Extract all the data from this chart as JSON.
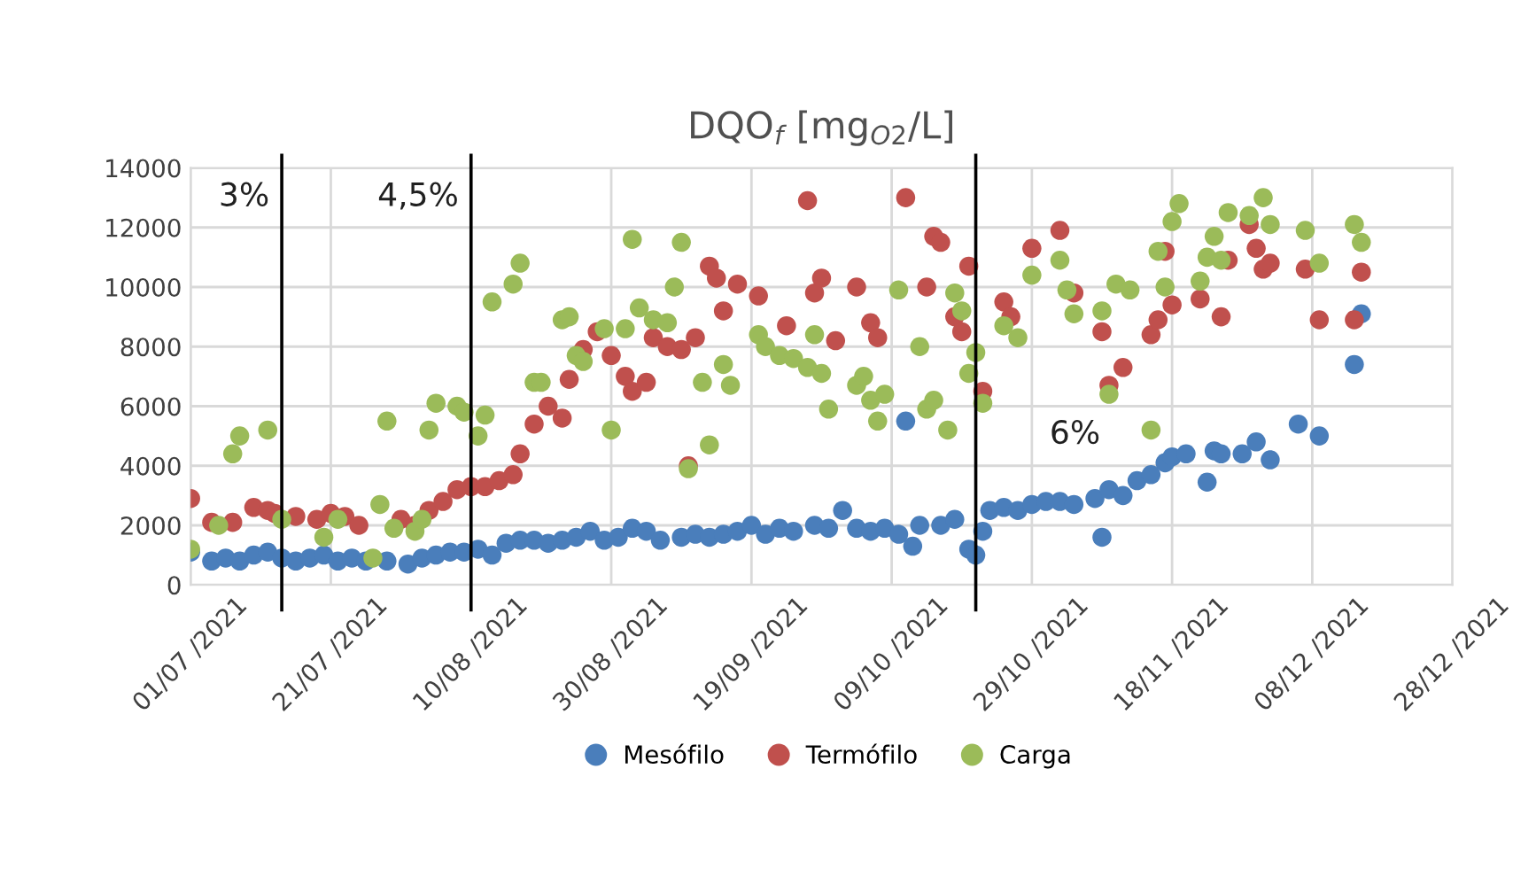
{
  "chart_data": {
    "type": "scatter",
    "title": "DQO$_{f}$ [mg$_{O2}$/L]",
    "xlim": [
      "2021-07-01",
      "2021-12-28"
    ],
    "xticks": [
      {
        "value": "2021-07-01",
        "label": "01/07 /2021"
      },
      {
        "value": "2021-07-21",
        "label": "21/07 /2021"
      },
      {
        "value": "2021-08-10",
        "label": "10/08 /2021"
      },
      {
        "value": "2021-08-30",
        "label": "30/08 /2021"
      },
      {
        "value": "2021-09-19",
        "label": "19/09 /2021"
      },
      {
        "value": "2021-10-09",
        "label": "09/10 /2021"
      },
      {
        "value": "2021-10-29",
        "label": "29/10 /2021"
      },
      {
        "value": "2021-11-18",
        "label": "18/11 /2021"
      },
      {
        "value": "2021-12-08",
        "label": "08/12 /2021"
      },
      {
        "value": "2021-12-28",
        "label": "28/12 /2021"
      }
    ],
    "ylim": [
      0,
      14000
    ],
    "yticks": [
      0,
      2000,
      4000,
      6000,
      8000,
      10000,
      12000,
      14000
    ],
    "grid": true,
    "legend": "bottom",
    "marker": "circle",
    "ref_lines": [
      {
        "axis": "x",
        "value": "2021-07-14",
        "label": "3%",
        "color": "#000000"
      },
      {
        "axis": "x",
        "value": "2021-08-10",
        "label": "4,5%",
        "color": "#000000"
      },
      {
        "axis": "x",
        "value": "2021-10-21",
        "label": "6%",
        "color": "#000000"
      }
    ],
    "series": [
      {
        "name": "Mesófilo",
        "color": "#4a7ebb",
        "x": [
          "2021-07-01",
          "2021-07-04",
          "2021-07-06",
          "2021-07-08",
          "2021-07-10",
          "2021-07-12",
          "2021-07-14",
          "2021-07-16",
          "2021-07-18",
          "2021-07-20",
          "2021-07-22",
          "2021-07-24",
          "2021-07-26",
          "2021-07-29",
          "2021-08-01",
          "2021-08-03",
          "2021-08-05",
          "2021-08-07",
          "2021-08-09",
          "2021-08-11",
          "2021-08-13",
          "2021-08-15",
          "2021-08-17",
          "2021-08-19",
          "2021-08-21",
          "2021-08-23",
          "2021-08-25",
          "2021-08-27",
          "2021-08-29",
          "2021-08-31",
          "2021-09-02",
          "2021-09-04",
          "2021-09-06",
          "2021-09-09",
          "2021-09-11",
          "2021-09-13",
          "2021-09-15",
          "2021-09-17",
          "2021-09-19",
          "2021-09-21",
          "2021-09-23",
          "2021-09-25",
          "2021-09-28",
          "2021-09-30",
          "2021-10-02",
          "2021-10-04",
          "2021-10-06",
          "2021-10-08",
          "2021-10-10",
          "2021-10-11",
          "2021-10-12",
          "2021-10-13",
          "2021-10-16",
          "2021-10-18",
          "2021-10-20",
          "2021-10-21",
          "2021-10-22",
          "2021-10-23",
          "2021-10-25",
          "2021-10-27",
          "2021-10-29",
          "2021-10-31",
          "2021-11-02",
          "2021-11-04",
          "2021-11-07",
          "2021-11-08",
          "2021-11-09",
          "2021-11-11",
          "2021-11-13",
          "2021-11-15",
          "2021-11-17",
          "2021-11-18",
          "2021-11-20",
          "2021-11-23",
          "2021-11-24",
          "2021-11-25",
          "2021-11-28",
          "2021-11-30",
          "2021-12-02",
          "2021-12-06",
          "2021-12-09",
          "2021-12-14",
          "2021-12-15"
        ],
        "values": [
          1100,
          800,
          900,
          800,
          1000,
          1100,
          900,
          800,
          900,
          1000,
          800,
          900,
          800,
          800,
          700,
          900,
          1000,
          1100,
          1100,
          1200,
          1000,
          1400,
          1500,
          1500,
          1400,
          1500,
          1600,
          1800,
          1500,
          1600,
          1900,
          1800,
          1500,
          1600,
          1700,
          1600,
          1700,
          1800,
          2000,
          1700,
          1900,
          1800,
          2000,
          1900,
          2500,
          1900,
          1800,
          1900,
          1700,
          5500,
          1300,
          2000,
          2000,
          2200,
          1200,
          1000,
          1800,
          2500,
          2600,
          2500,
          2700,
          2800,
          2800,
          2700,
          2900,
          1600,
          3200,
          3000,
          3500,
          3700,
          4100,
          4300,
          4400,
          3450,
          4500,
          4400,
          4400,
          4800,
          4200,
          5400,
          5000,
          7400,
          9100
        ]
      },
      {
        "name": "Termófilo",
        "color": "#c0504d",
        "x": [
          "2021-07-01",
          "2021-07-04",
          "2021-07-07",
          "2021-07-10",
          "2021-07-12",
          "2021-07-13",
          "2021-07-16",
          "2021-07-19",
          "2021-07-21",
          "2021-07-23",
          "2021-07-25",
          "2021-07-31",
          "2021-08-02",
          "2021-08-04",
          "2021-08-06",
          "2021-08-08",
          "2021-08-10",
          "2021-08-12",
          "2021-08-14",
          "2021-08-16",
          "2021-08-17",
          "2021-08-19",
          "2021-08-21",
          "2021-08-23",
          "2021-08-24",
          "2021-08-26",
          "2021-08-28",
          "2021-08-30",
          "2021-09-01",
          "2021-09-02",
          "2021-09-04",
          "2021-09-05",
          "2021-09-07",
          "2021-09-09",
          "2021-09-10",
          "2021-09-11",
          "2021-09-13",
          "2021-09-14",
          "2021-09-15",
          "2021-09-17",
          "2021-09-20",
          "2021-09-24",
          "2021-09-27",
          "2021-09-28",
          "2021-09-29",
          "2021-10-01",
          "2021-10-04",
          "2021-10-06",
          "2021-10-07",
          "2021-10-11",
          "2021-10-14",
          "2021-10-15",
          "2021-10-16",
          "2021-10-18",
          "2021-10-19",
          "2021-10-20",
          "2021-10-22",
          "2021-10-25",
          "2021-10-26",
          "2021-10-29",
          "2021-11-02",
          "2021-11-04",
          "2021-11-08",
          "2021-11-09",
          "2021-11-11",
          "2021-11-15",
          "2021-11-16",
          "2021-11-17",
          "2021-11-18",
          "2021-11-22",
          "2021-11-25",
          "2021-11-26",
          "2021-11-29",
          "2021-11-30",
          "2021-12-01",
          "2021-12-02",
          "2021-12-07",
          "2021-12-09",
          "2021-12-14",
          "2021-12-15"
        ],
        "values": [
          2900,
          2100,
          2100,
          2600,
          2500,
          2400,
          2300,
          2200,
          2400,
          2300,
          2000,
          2200,
          2000,
          2500,
          2800,
          3200,
          3300,
          3300,
          3500,
          3700,
          4400,
          5400,
          6000,
          5600,
          6900,
          7900,
          8500,
          7700,
          7000,
          6500,
          6800,
          8300,
          8000,
          7900,
          4000,
          8300,
          10700,
          10300,
          9200,
          10100,
          9700,
          8700,
          12900,
          9800,
          10300,
          8200,
          10000,
          8800,
          8300,
          13000,
          10000,
          11700,
          11500,
          9000,
          8500,
          10700,
          6500,
          9500,
          9000,
          11300,
          11900,
          9800,
          8500,
          6700,
          7300,
          8400,
          8900,
          11200,
          9400,
          9600,
          9000,
          10900,
          12100,
          11300,
          10600,
          10800,
          10600,
          8900,
          8900,
          10500
        ]
      },
      {
        "name": "Carga",
        "color": "#9bbb59",
        "x": [
          "2021-07-01",
          "2021-07-05",
          "2021-07-07",
          "2021-07-08",
          "2021-07-12",
          "2021-07-14",
          "2021-07-20",
          "2021-07-22",
          "2021-07-27",
          "2021-07-28",
          "2021-07-29",
          "2021-07-30",
          "2021-08-02",
          "2021-08-03",
          "2021-08-04",
          "2021-08-05",
          "2021-08-08",
          "2021-08-09",
          "2021-08-11",
          "2021-08-12",
          "2021-08-13",
          "2021-08-16",
          "2021-08-17",
          "2021-08-19",
          "2021-08-20",
          "2021-08-23",
          "2021-08-24",
          "2021-08-25",
          "2021-08-26",
          "2021-08-29",
          "2021-08-30",
          "2021-09-01",
          "2021-09-02",
          "2021-09-03",
          "2021-09-05",
          "2021-09-07",
          "2021-09-08",
          "2021-09-09",
          "2021-09-10",
          "2021-09-12",
          "2021-09-13",
          "2021-09-15",
          "2021-09-16",
          "2021-09-20",
          "2021-09-21",
          "2021-09-23",
          "2021-09-25",
          "2021-09-27",
          "2021-09-28",
          "2021-09-29",
          "2021-09-30",
          "2021-10-04",
          "2021-10-05",
          "2021-10-06",
          "2021-10-07",
          "2021-10-08",
          "2021-10-10",
          "2021-10-13",
          "2021-10-14",
          "2021-10-15",
          "2021-10-17",
          "2021-10-18",
          "2021-10-19",
          "2021-10-20",
          "2021-10-21",
          "2021-10-22",
          "2021-10-25",
          "2021-10-27",
          "2021-10-29",
          "2021-11-02",
          "2021-11-03",
          "2021-11-04",
          "2021-11-08",
          "2021-11-09",
          "2021-11-10",
          "2021-11-12",
          "2021-11-15",
          "2021-11-16",
          "2021-11-17",
          "2021-11-18",
          "2021-11-19",
          "2021-11-22",
          "2021-11-23",
          "2021-11-24",
          "2021-11-25",
          "2021-11-26",
          "2021-11-29",
          "2021-12-01",
          "2021-12-02",
          "2021-12-07",
          "2021-12-09",
          "2021-12-14",
          "2021-12-15"
        ],
        "values": [
          1200,
          2000,
          4400,
          5000,
          5200,
          2200,
          1600,
          2200,
          900,
          2700,
          5500,
          1900,
          1800,
          2200,
          5200,
          6100,
          6000,
          5800,
          5000,
          5700,
          9500,
          10100,
          10800,
          6800,
          6800,
          8900,
          9000,
          7700,
          7500,
          8600,
          5200,
          8600,
          11600,
          9300,
          8900,
          8800,
          10000,
          11500,
          3900,
          6800,
          4700,
          7400,
          6700,
          8400,
          8000,
          7700,
          7600,
          7300,
          8400,
          7100,
          5900,
          6700,
          7000,
          6200,
          5500,
          6400,
          9900,
          8000,
          5900,
          6200,
          5200,
          9800,
          9200,
          7100,
          7800,
          6100,
          8700,
          8300,
          10400,
          10900,
          9900,
          9100,
          9200,
          6400,
          10100,
          9900,
          5200,
          11200,
          10000,
          12200,
          12800,
          10200,
          11000,
          11700,
          10900,
          12500,
          12400,
          13000,
          12100,
          11900,
          10800,
          12100,
          11500
        ]
      }
    ]
  }
}
